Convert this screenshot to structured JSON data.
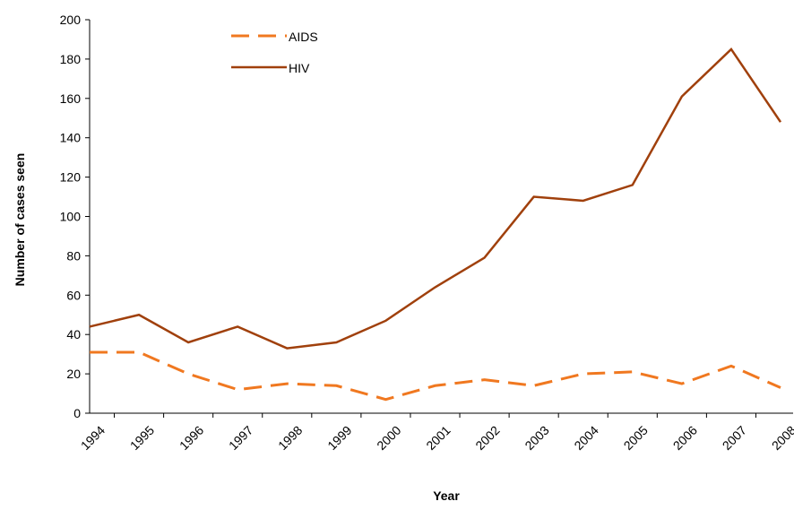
{
  "chart_data": {
    "type": "line",
    "x_label": "Year",
    "y_label": "Number of cases seen",
    "categories": [
      "1994",
      "1995",
      "1996",
      "1997",
      "1998",
      "1999",
      "2000",
      "2001",
      "2002",
      "2003",
      "2004",
      "2005",
      "2006",
      "2007",
      "2008"
    ],
    "series": [
      {
        "name": "AIDS",
        "color": "#f07820",
        "dashed": true,
        "values": [
          31,
          31,
          20,
          12,
          15,
          14,
          7,
          14,
          17,
          14,
          20,
          21,
          15,
          24,
          13
        ]
      },
      {
        "name": "HIV",
        "color": "#a0400c",
        "dashed": false,
        "values": [
          44,
          50,
          36,
          44,
          33,
          36,
          47,
          64,
          79,
          110,
          108,
          116,
          161,
          185,
          148
        ]
      }
    ],
    "ylim": [
      0,
      200
    ],
    "yticks": [
      0,
      20,
      40,
      60,
      80,
      100,
      120,
      140,
      160,
      180,
      200
    ],
    "grid": false,
    "legend": "top"
  }
}
